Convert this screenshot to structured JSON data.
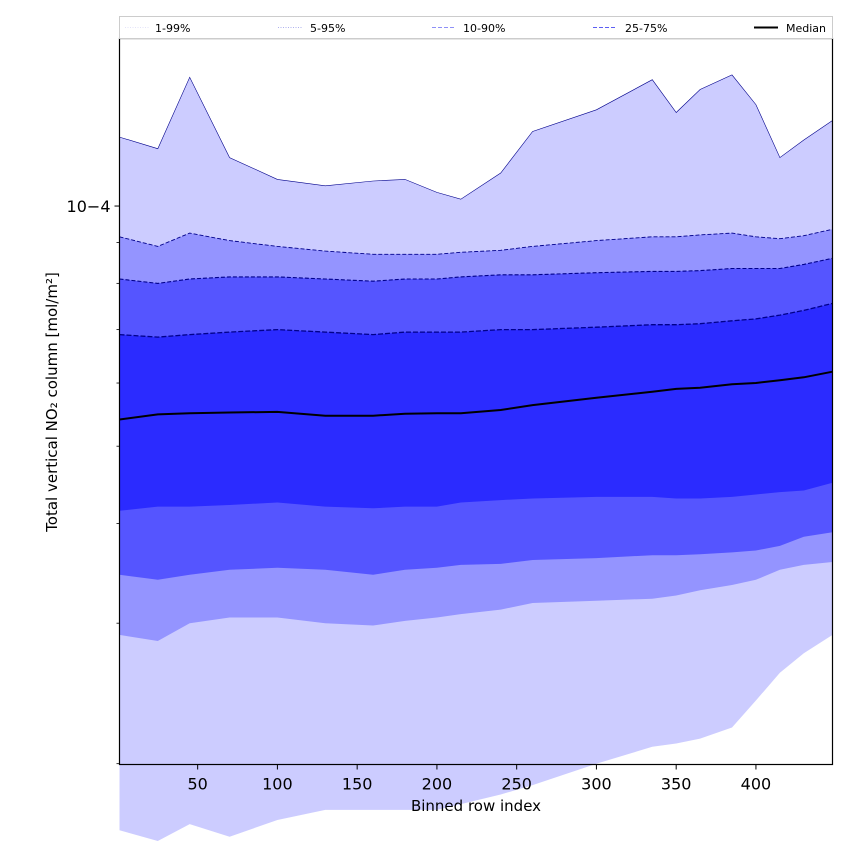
{
  "chart_data": {
    "type": "area",
    "xlabel": "Binned row index",
    "ylabel": "Total vertical NO₂ column [mol/m²]",
    "y_scale": "log",
    "xlim": [
      1,
      448
    ],
    "ylim_log10": [
      -4.7,
      -3.79
    ],
    "x_ticks": [
      50,
      100,
      150,
      200,
      250,
      300,
      350,
      400
    ],
    "y_ticks": [
      {
        "value": 0.0001,
        "label": "10−4"
      }
    ],
    "legend": {
      "placement": "top",
      "entries": [
        {
          "label": "1-99%",
          "color": "#e3e3f8",
          "style": "dotted"
        },
        {
          "label": "5-95%",
          "color": "#aeb0ee",
          "style": "dotted"
        },
        {
          "label": "10-90%",
          "color": "#8e90f7",
          "style": "dashed"
        },
        {
          "label": "25-75%",
          "color": "#5c5ef3",
          "style": "dashed"
        },
        {
          "label": "Median",
          "color": "#000000",
          "style": "solid"
        }
      ]
    },
    "colors": {
      "band_1_99": "#ccccff",
      "band_5_95": "#9494ff",
      "band_10_90": "#5555ff",
      "band_25_75": "#2b2bff",
      "median": "#000000",
      "outline": "#00008b"
    },
    "x": [
      1,
      25,
      45,
      70,
      100,
      130,
      160,
      180,
      200,
      215,
      240,
      260,
      300,
      335,
      350,
      365,
      385,
      400,
      415,
      430,
      448
    ],
    "series": [
      {
        "name": "Median",
        "values": [
          5.4e-05,
          5.48e-05,
          5.5e-05,
          5.51e-05,
          5.52e-05,
          5.46e-05,
          5.46e-05,
          5.49e-05,
          5.5e-05,
          5.5e-05,
          5.55e-05,
          5.63e-05,
          5.75e-05,
          5.85e-05,
          5.9e-05,
          5.92e-05,
          5.98e-05,
          6e-05,
          6.05e-05,
          6.1e-05,
          6.2e-05
        ]
      },
      {
        "name": "25-75%",
        "lower": [
          4.15e-05,
          4.2e-05,
          4.2e-05,
          4.22e-05,
          4.25e-05,
          4.2e-05,
          4.18e-05,
          4.2e-05,
          4.2e-05,
          4.25e-05,
          4.28e-05,
          4.3e-05,
          4.32e-05,
          4.32e-05,
          4.3e-05,
          4.3e-05,
          4.32e-05,
          4.35e-05,
          4.38e-05,
          4.4e-05,
          4.5e-05
        ],
        "upper": [
          6.9e-05,
          6.85e-05,
          6.9e-05,
          6.95e-05,
          7e-05,
          6.95e-05,
          6.9e-05,
          6.95e-05,
          6.95e-05,
          6.95e-05,
          7e-05,
          7e-05,
          7.05e-05,
          7.1e-05,
          7.1e-05,
          7.12e-05,
          7.18e-05,
          7.22e-05,
          7.3e-05,
          7.4e-05,
          7.55e-05
        ]
      },
      {
        "name": "10-90%",
        "lower": [
          3.45e-05,
          3.4e-05,
          3.45e-05,
          3.5e-05,
          3.52e-05,
          3.5e-05,
          3.45e-05,
          3.5e-05,
          3.52e-05,
          3.55e-05,
          3.56e-05,
          3.6e-05,
          3.62e-05,
          3.65e-05,
          3.65e-05,
          3.66e-05,
          3.68e-05,
          3.7e-05,
          3.75e-05,
          3.85e-05,
          3.9e-05
        ],
        "upper": [
          8.1e-05,
          8e-05,
          8.1e-05,
          8.15e-05,
          8.15e-05,
          8.1e-05,
          8.05e-05,
          8.1e-05,
          8.1e-05,
          8.15e-05,
          8.2e-05,
          8.2e-05,
          8.25e-05,
          8.28e-05,
          8.28e-05,
          8.3e-05,
          8.35e-05,
          8.35e-05,
          8.35e-05,
          8.45e-05,
          8.6e-05
        ]
      },
      {
        "name": "5-95%",
        "lower": [
          2.9e-05,
          2.85e-05,
          3e-05,
          3.05e-05,
          3.05e-05,
          3e-05,
          2.98e-05,
          3.02e-05,
          3.05e-05,
          3.08e-05,
          3.12e-05,
          3.18e-05,
          3.2e-05,
          3.22e-05,
          3.25e-05,
          3.3e-05,
          3.35e-05,
          3.4e-05,
          3.5e-05,
          3.55e-05,
          3.58e-05
        ],
        "upper": [
          9.15e-05,
          8.9e-05,
          9.25e-05,
          9.05e-05,
          8.9e-05,
          8.78e-05,
          8.7e-05,
          8.7e-05,
          8.7e-05,
          8.75e-05,
          8.8e-05,
          8.9e-05,
          9.05e-05,
          9.15e-05,
          9.15e-05,
          9.2e-05,
          9.25e-05,
          9.15e-05,
          9.1e-05,
          9.18e-05,
          9.35e-05
        ]
      },
      {
        "name": "1-99%",
        "lower": [
          1.65e-05,
          1.6e-05,
          1.68e-05,
          1.62e-05,
          1.7e-05,
          1.75e-05,
          1.75e-05,
          1.75e-05,
          1.75e-05,
          1.78e-05,
          1.83e-05,
          1.88e-05,
          2e-05,
          2.1e-05,
          2.12e-05,
          2.15e-05,
          2.22e-05,
          2.4e-05,
          2.6e-05,
          2.75e-05,
          2.9e-05
        ],
        "upper": [
          0.000122,
          0.000118,
          0.000145,
          0.000115,
          0.000108,
          0.000106,
          0.0001075,
          0.000108,
          0.000104,
          0.000102,
          0.00011,
          0.000124,
          0.000132,
          0.000144,
          0.000131,
          0.00014,
          0.000146,
          0.000134,
          0.000115,
          0.000121,
          0.000128
        ]
      }
    ]
  }
}
